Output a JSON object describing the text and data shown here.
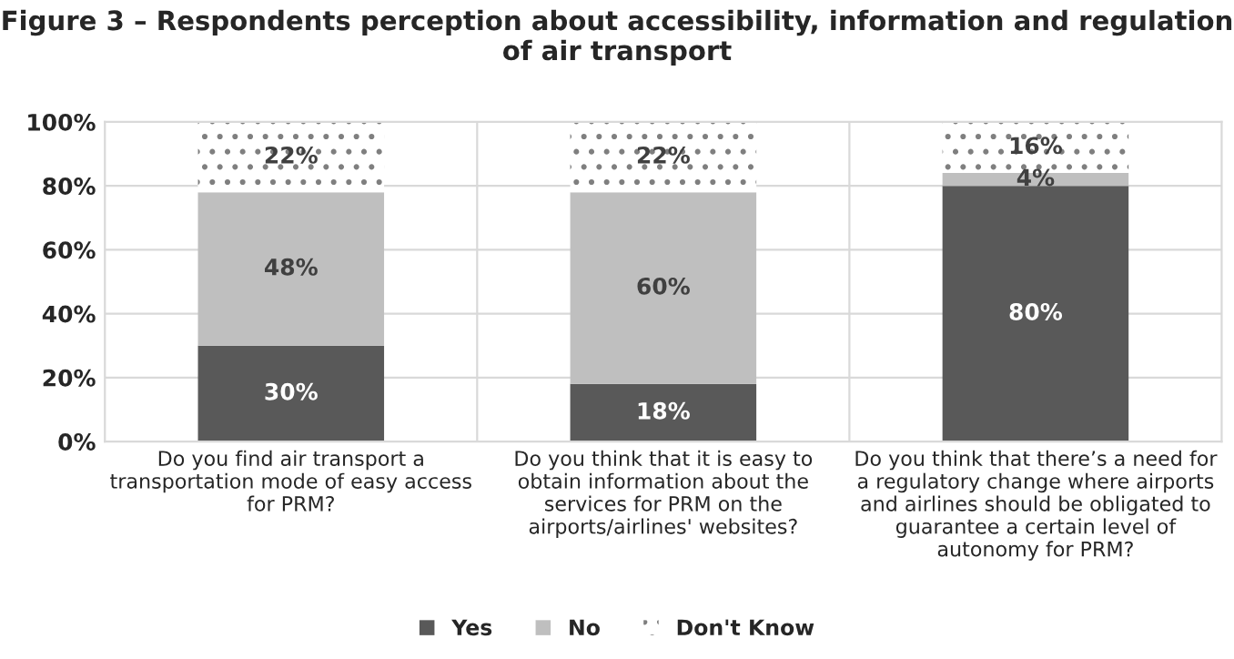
{
  "chart_data": {
    "type": "bar",
    "stacked": true,
    "title": "Figure 3 – Respondents perception about accessibility, information and regulation of air transport",
    "categories": [
      "Do you find air transport a transportation mode of easy access for PRM?",
      "Do you think that it is easy to obtain information about the services for PRM on the airports/airlines' websites?",
      "Do you think that there’s a need for a regulatory change where airports and airlines should be obligated to guarantee a certain level of autonomy for PRM?"
    ],
    "series": [
      {
        "name": "Yes",
        "color": "#595959",
        "values": [
          30,
          18,
          80
        ],
        "value_labels": [
          "30%",
          "18%",
          "80%"
        ]
      },
      {
        "name": "No",
        "color": "#bfbfbf",
        "values": [
          48,
          60,
          4
        ],
        "value_labels": [
          "48%",
          "60%",
          "4%"
        ]
      },
      {
        "name": "Don't Know",
        "color": "#ffffff",
        "values": [
          22,
          22,
          16
        ],
        "value_labels": [
          "22%",
          "22%",
          "16%"
        ]
      }
    ],
    "ylim": [
      0,
      100
    ],
    "yticks": [
      {
        "value": 0,
        "label": "0%"
      },
      {
        "value": 20,
        "label": "20%"
      },
      {
        "value": 40,
        "label": "40%"
      },
      {
        "value": 60,
        "label": "60%"
      },
      {
        "value": 80,
        "label": "80%"
      },
      {
        "value": 100,
        "label": "100%"
      }
    ],
    "grid": "y",
    "legend": "bottom"
  }
}
